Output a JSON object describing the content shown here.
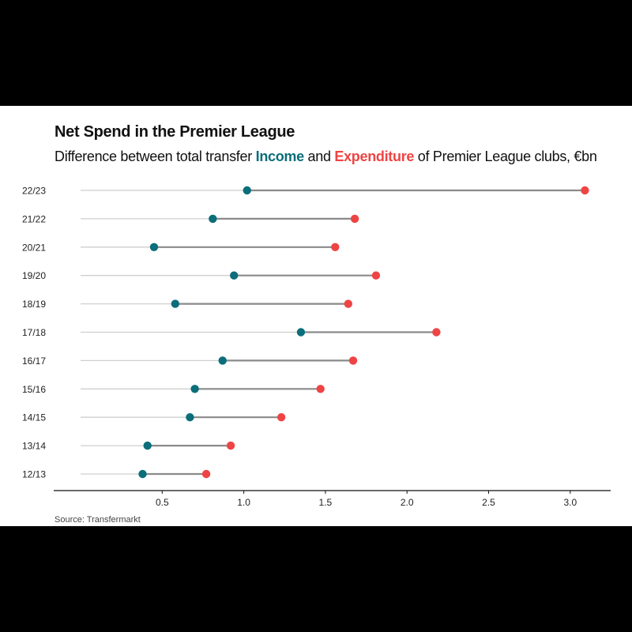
{
  "chart_data": {
    "type": "dumbbell",
    "title": "Net Spend in the Premier League",
    "subtitle": {
      "prefix": "Difference between total transfer ",
      "income_label": "Income",
      "middle": " and ",
      "expenditure_label": "Expenditure",
      "suffix": " of Premier League clubs, €bn"
    },
    "source": "Source: Transfermarkt",
    "categories": [
      "22/23",
      "21/22",
      "20/21",
      "19/20",
      "18/19",
      "17/18",
      "16/17",
      "15/16",
      "14/15",
      "13/14",
      "12/13"
    ],
    "series": [
      {
        "name": "Income",
        "values": [
          1.02,
          0.81,
          0.45,
          0.94,
          0.58,
          1.35,
          0.87,
          0.7,
          0.67,
          0.41,
          0.38
        ]
      },
      {
        "name": "Expenditure",
        "values": [
          3.09,
          1.68,
          1.56,
          1.81,
          1.64,
          2.18,
          1.67,
          1.47,
          1.23,
          0.92,
          0.77
        ]
      }
    ],
    "x_ticks": [
      "0.5",
      "1.0",
      "1.5",
      "2.0",
      "2.5",
      "3.0"
    ],
    "xlim": [
      0,
      3.1
    ],
    "grid": false,
    "colors": {
      "income": "#0b6e7a",
      "expenditure": "#ef4444",
      "connector": "#8a8a8a",
      "baseline": "#cfcfcf"
    }
  }
}
